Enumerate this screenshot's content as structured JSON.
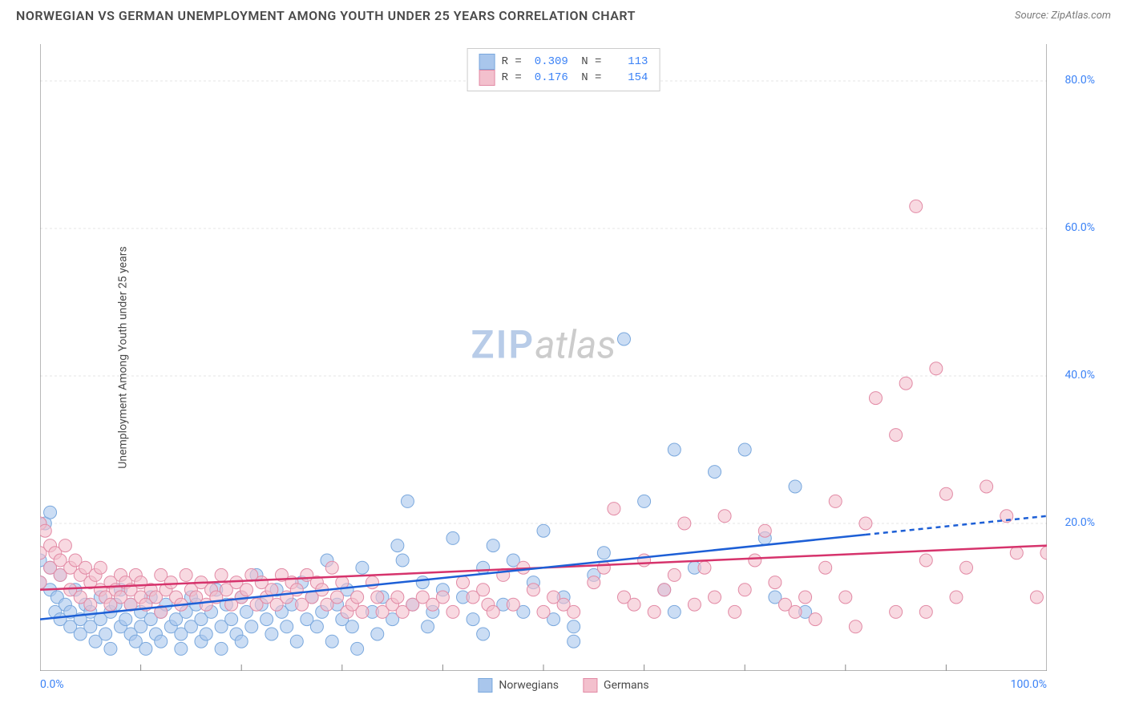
{
  "header": {
    "title": "NORWEGIAN VS GERMAN UNEMPLOYMENT AMONG YOUTH UNDER 25 YEARS CORRELATION CHART",
    "source": "Source: ZipAtlas.com"
  },
  "chart": {
    "type": "scatter",
    "ylabel": "Unemployment Among Youth under 25 years",
    "xlim": [
      0,
      100
    ],
    "ylim": [
      0,
      85
    ],
    "yticks": [
      20,
      40,
      60,
      80
    ],
    "ytick_labels": [
      "20.0%",
      "40.0%",
      "60.0%",
      "80.0%"
    ],
    "xtick_min_label": "0.0%",
    "xtick_max_label": "100.0%",
    "xtick_positions": [
      0,
      10,
      20,
      30,
      40,
      50,
      60,
      70,
      80,
      90,
      100
    ],
    "grid_color": "#e5e5e5",
    "axis_color": "#888888",
    "tick_label_color": "#3b82f6",
    "background_color": "#ffffff",
    "series": {
      "norwegians": {
        "label": "Norwegians",
        "color_fill": "#a9c6ec",
        "color_stroke": "#7aa8dd",
        "fill_opacity": 0.6,
        "marker_radius": 8,
        "R": "0.309",
        "N": "113",
        "trend": {
          "y_at_x0": 7,
          "y_at_x100": 21,
          "x_solid_end": 82,
          "color": "#1d5fd6",
          "width": 2.5
        },
        "points": [
          [
            0,
            12
          ],
          [
            0,
            15
          ],
          [
            0.5,
            20
          ],
          [
            1,
            11
          ],
          [
            1,
            14
          ],
          [
            1,
            21.5
          ],
          [
            1.5,
            8
          ],
          [
            1.7,
            10
          ],
          [
            2,
            7
          ],
          [
            2,
            13
          ],
          [
            2.5,
            9
          ],
          [
            3,
            6
          ],
          [
            3,
            8
          ],
          [
            3.5,
            11
          ],
          [
            4,
            5
          ],
          [
            4,
            7
          ],
          [
            4.5,
            9
          ],
          [
            5,
            6
          ],
          [
            5,
            8
          ],
          [
            5.5,
            4
          ],
          [
            6,
            7
          ],
          [
            6,
            10
          ],
          [
            6.5,
            5
          ],
          [
            7,
            8
          ],
          [
            7,
            3
          ],
          [
            7.5,
            9
          ],
          [
            8,
            6
          ],
          [
            8,
            11
          ],
          [
            8.5,
            7
          ],
          [
            9,
            5
          ],
          [
            9,
            9
          ],
          [
            9.5,
            4
          ],
          [
            10,
            8
          ],
          [
            10,
            6
          ],
          [
            10.5,
            3
          ],
          [
            11,
            7
          ],
          [
            11,
            10
          ],
          [
            11.5,
            5
          ],
          [
            12,
            8
          ],
          [
            12,
            4
          ],
          [
            12.5,
            9
          ],
          [
            13,
            6
          ],
          [
            13.5,
            7
          ],
          [
            14,
            5
          ],
          [
            14,
            3
          ],
          [
            14.5,
            8
          ],
          [
            15,
            10
          ],
          [
            15,
            6
          ],
          [
            15.5,
            9
          ],
          [
            16,
            4
          ],
          [
            16,
            7
          ],
          [
            16.5,
            5
          ],
          [
            17,
            8
          ],
          [
            17.5,
            11
          ],
          [
            18,
            6
          ],
          [
            18,
            3
          ],
          [
            18.5,
            9
          ],
          [
            19,
            7
          ],
          [
            19.5,
            5
          ],
          [
            20,
            10
          ],
          [
            20,
            4
          ],
          [
            20.5,
            8
          ],
          [
            21,
            6
          ],
          [
            21.5,
            13
          ],
          [
            22,
            9
          ],
          [
            22.5,
            7
          ],
          [
            23,
            5
          ],
          [
            23.5,
            11
          ],
          [
            24,
            8
          ],
          [
            24.5,
            6
          ],
          [
            25,
            9
          ],
          [
            25.5,
            4
          ],
          [
            26,
            12
          ],
          [
            26.5,
            7
          ],
          [
            27,
            10
          ],
          [
            27.5,
            6
          ],
          [
            28,
            8
          ],
          [
            28.5,
            15
          ],
          [
            29,
            4
          ],
          [
            29.5,
            9
          ],
          [
            30,
            7
          ],
          [
            30.5,
            11
          ],
          [
            31,
            6
          ],
          [
            31.5,
            3
          ],
          [
            32,
            14
          ],
          [
            33,
            8
          ],
          [
            33.5,
            5
          ],
          [
            34,
            10
          ],
          [
            35,
            7
          ],
          [
            35.5,
            17
          ],
          [
            36,
            15
          ],
          [
            36.5,
            23
          ],
          [
            37,
            9
          ],
          [
            38,
            12
          ],
          [
            38.5,
            6
          ],
          [
            39,
            8
          ],
          [
            40,
            11
          ],
          [
            41,
            18
          ],
          [
            42,
            10
          ],
          [
            43,
            7
          ],
          [
            44,
            14
          ],
          [
            44,
            5
          ],
          [
            45,
            17
          ],
          [
            46,
            9
          ],
          [
            47,
            15
          ],
          [
            48,
            8
          ],
          [
            49,
            12
          ],
          [
            50,
            19
          ],
          [
            51,
            7
          ],
          [
            52,
            10
          ],
          [
            53,
            6
          ],
          [
            53,
            4
          ],
          [
            55,
            13
          ],
          [
            56,
            16
          ],
          [
            58,
            45
          ],
          [
            60,
            23
          ],
          [
            62,
            11
          ],
          [
            63,
            30
          ],
          [
            63,
            8
          ],
          [
            65,
            14
          ],
          [
            67,
            27
          ],
          [
            70,
            30
          ],
          [
            72,
            18
          ],
          [
            73,
            10
          ],
          [
            75,
            25
          ],
          [
            76,
            8
          ]
        ]
      },
      "germans": {
        "label": "Germans",
        "color_fill": "#f3c0cd",
        "color_stroke": "#e28aa5",
        "fill_opacity": 0.6,
        "marker_radius": 8,
        "R": "0.176",
        "N": "154",
        "trend": {
          "y_at_x0": 11,
          "y_at_x100": 17,
          "x_solid_end": 100,
          "color": "#d6336c",
          "width": 2.5
        },
        "points": [
          [
            0,
            12
          ],
          [
            0,
            16
          ],
          [
            0,
            20
          ],
          [
            0.5,
            19
          ],
          [
            1,
            17
          ],
          [
            1,
            14
          ],
          [
            1.5,
            16
          ],
          [
            2,
            15
          ],
          [
            2,
            13
          ],
          [
            2.5,
            17
          ],
          [
            3,
            14
          ],
          [
            3,
            11
          ],
          [
            3.5,
            15
          ],
          [
            4,
            13
          ],
          [
            4,
            10
          ],
          [
            4.5,
            14
          ],
          [
            5,
            12
          ],
          [
            5,
            9
          ],
          [
            5.5,
            13
          ],
          [
            6,
            11
          ],
          [
            6,
            14
          ],
          [
            6.5,
            10
          ],
          [
            7,
            12
          ],
          [
            7,
            9
          ],
          [
            7.5,
            11
          ],
          [
            8,
            13
          ],
          [
            8,
            10
          ],
          [
            8.5,
            12
          ],
          [
            9,
            9
          ],
          [
            9,
            11
          ],
          [
            9.5,
            13
          ],
          [
            10,
            10
          ],
          [
            10,
            12
          ],
          [
            10.5,
            9
          ],
          [
            11,
            11
          ],
          [
            11.5,
            10
          ],
          [
            12,
            13
          ],
          [
            12,
            8
          ],
          [
            12.5,
            11
          ],
          [
            13,
            12
          ],
          [
            13.5,
            10
          ],
          [
            14,
            9
          ],
          [
            14.5,
            13
          ],
          [
            15,
            11
          ],
          [
            15.5,
            10
          ],
          [
            16,
            12
          ],
          [
            16.5,
            9
          ],
          [
            17,
            11
          ],
          [
            17.5,
            10
          ],
          [
            18,
            13
          ],
          [
            18.5,
            11
          ],
          [
            19,
            9
          ],
          [
            19.5,
            12
          ],
          [
            20,
            10
          ],
          [
            20.5,
            11
          ],
          [
            21,
            13
          ],
          [
            21.5,
            9
          ],
          [
            22,
            12
          ],
          [
            22.5,
            10
          ],
          [
            23,
            11
          ],
          [
            23.5,
            9
          ],
          [
            24,
            13
          ],
          [
            24.5,
            10
          ],
          [
            25,
            12
          ],
          [
            25.5,
            11
          ],
          [
            26,
            9
          ],
          [
            26.5,
            13
          ],
          [
            27,
            10
          ],
          [
            27.5,
            12
          ],
          [
            28,
            11
          ],
          [
            28.5,
            9
          ],
          [
            29,
            14
          ],
          [
            29.5,
            10
          ],
          [
            30,
            12
          ],
          [
            30.5,
            8
          ],
          [
            31,
            9
          ],
          [
            31.5,
            10
          ],
          [
            32,
            8
          ],
          [
            33,
            12
          ],
          [
            33.5,
            10
          ],
          [
            34,
            8
          ],
          [
            35,
            9
          ],
          [
            35.5,
            10
          ],
          [
            36,
            8
          ],
          [
            37,
            9
          ],
          [
            38,
            10
          ],
          [
            39,
            9
          ],
          [
            40,
            10
          ],
          [
            41,
            8
          ],
          [
            42,
            12
          ],
          [
            43,
            10
          ],
          [
            44,
            11
          ],
          [
            44.5,
            9
          ],
          [
            45,
            8
          ],
          [
            46,
            13
          ],
          [
            47,
            9
          ],
          [
            48,
            14
          ],
          [
            49,
            11
          ],
          [
            50,
            8
          ],
          [
            51,
            10
          ],
          [
            52,
            9
          ],
          [
            53,
            8
          ],
          [
            55,
            12
          ],
          [
            56,
            14
          ],
          [
            57,
            22
          ],
          [
            58,
            10
          ],
          [
            59,
            9
          ],
          [
            60,
            15
          ],
          [
            61,
            8
          ],
          [
            62,
            11
          ],
          [
            63,
            13
          ],
          [
            64,
            20
          ],
          [
            65,
            9
          ],
          [
            66,
            14
          ],
          [
            67,
            10
          ],
          [
            68,
            21
          ],
          [
            69,
            8
          ],
          [
            70,
            11
          ],
          [
            71,
            15
          ],
          [
            72,
            19
          ],
          [
            73,
            12
          ],
          [
            74,
            9
          ],
          [
            75,
            8
          ],
          [
            76,
            10
          ],
          [
            77,
            7
          ],
          [
            78,
            14
          ],
          [
            79,
            23
          ],
          [
            80,
            10
          ],
          [
            81,
            6
          ],
          [
            82,
            20
          ],
          [
            83,
            37
          ],
          [
            85,
            32
          ],
          [
            85,
            8
          ],
          [
            86,
            39
          ],
          [
            87,
            63
          ],
          [
            88,
            15
          ],
          [
            88,
            8
          ],
          [
            89,
            41
          ],
          [
            90,
            24
          ],
          [
            91,
            10
          ],
          [
            92,
            14
          ],
          [
            94,
            25
          ],
          [
            96,
            21
          ],
          [
            97,
            16
          ],
          [
            99,
            10
          ],
          [
            100,
            16
          ]
        ]
      }
    },
    "legend_bottom": [
      {
        "label": "Norwegians",
        "fill": "#a9c6ec",
        "stroke": "#7aa8dd"
      },
      {
        "label": "Germans",
        "fill": "#f3c0cd",
        "stroke": "#e28aa5"
      }
    ],
    "watermark": {
      "part1": "ZIP",
      "part2": "atlas"
    }
  }
}
